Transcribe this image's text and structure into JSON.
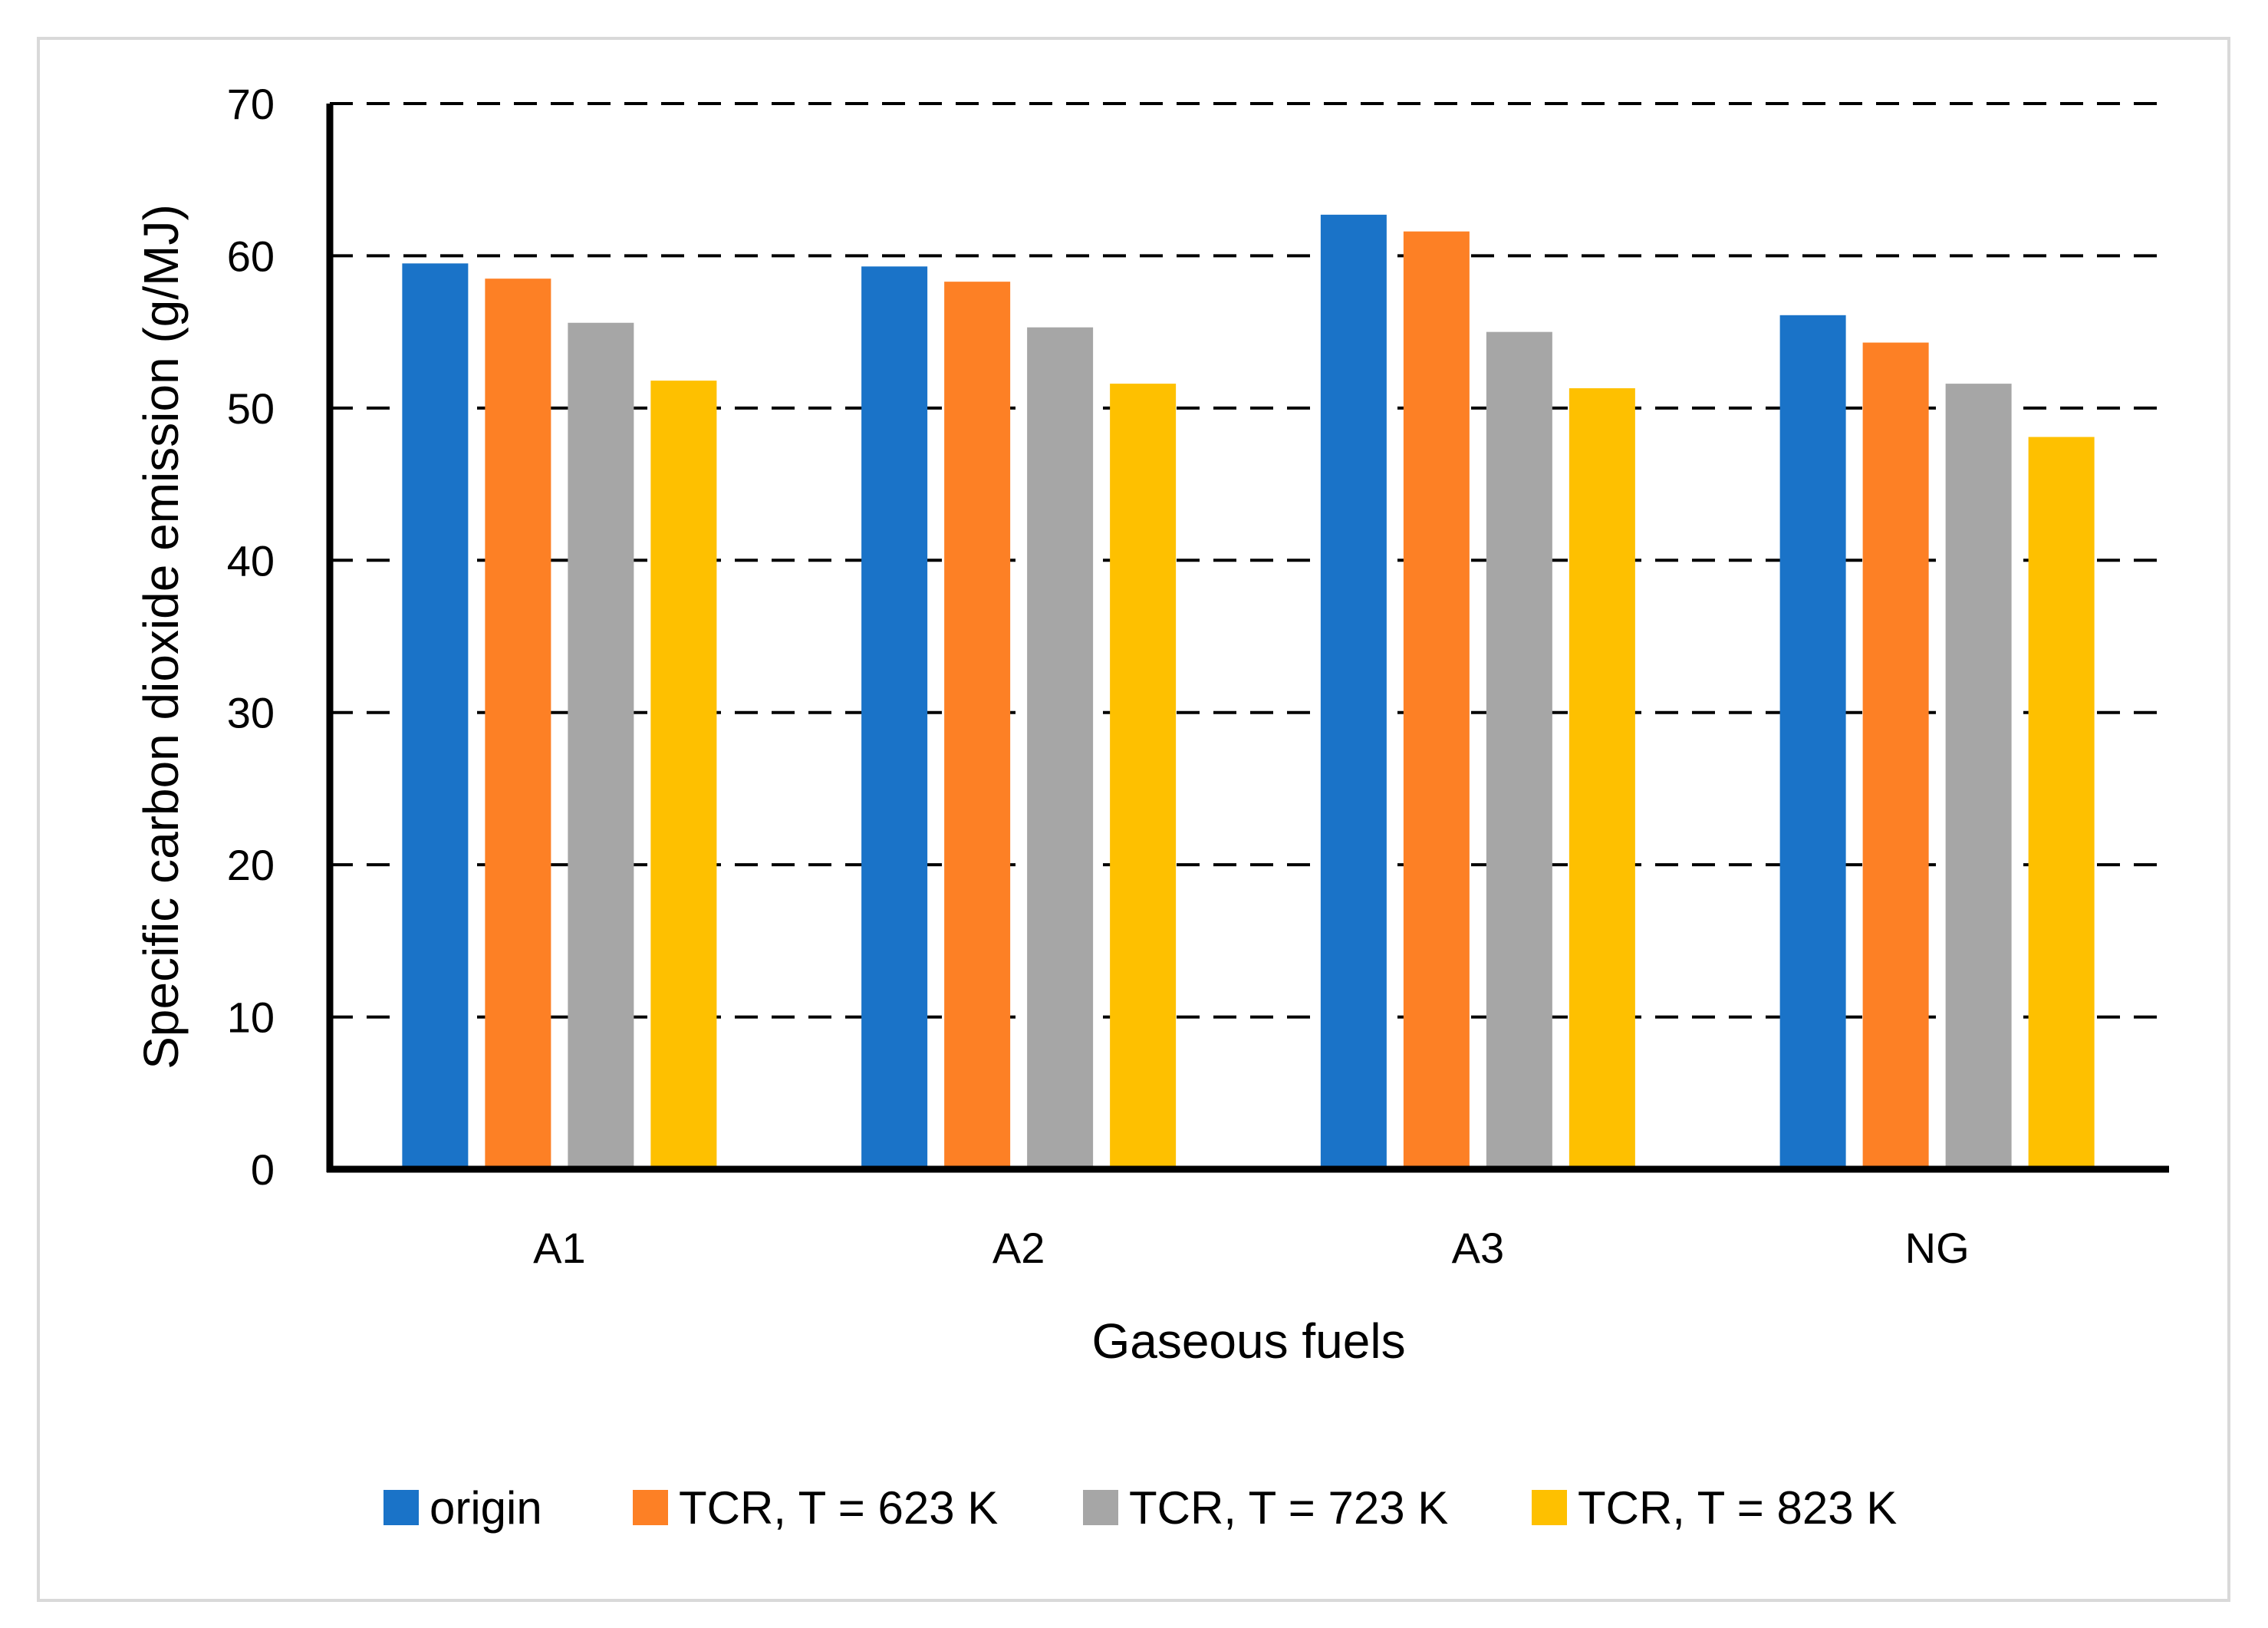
{
  "chart_data": {
    "type": "bar",
    "title": "",
    "xlabel": "Gaseous fuels",
    "ylabel": "Specific carbon dioxide emission (g/MJ)",
    "ylim": [
      0,
      70
    ],
    "yticks": [
      0,
      10,
      20,
      30,
      40,
      50,
      60,
      70
    ],
    "ytick_labels": [
      "0",
      "10",
      "20",
      "30",
      "40",
      "50",
      "60",
      "70"
    ],
    "grid": "dashed horizontal",
    "legend_position": "bottom",
    "categories": [
      "A1",
      "A2",
      "A3",
      "NG"
    ],
    "series": [
      {
        "name": "origin",
        "color": "#1a73c8",
        "values": [
          59.5,
          59.3,
          62.7,
          56.1
        ]
      },
      {
        "name": "TCR, T = 623 K",
        "color": "#fd8025",
        "values": [
          58.5,
          58.3,
          61.6,
          54.3
        ]
      },
      {
        "name": "TCR, T = 723 K",
        "color": "#a6a6a6",
        "values": [
          55.6,
          55.3,
          55.0,
          51.6
        ]
      },
      {
        "name": "TCR, T = 823 K",
        "color": "#fec000",
        "values": [
          51.8,
          51.6,
          51.3,
          48.1
        ]
      }
    ]
  }
}
